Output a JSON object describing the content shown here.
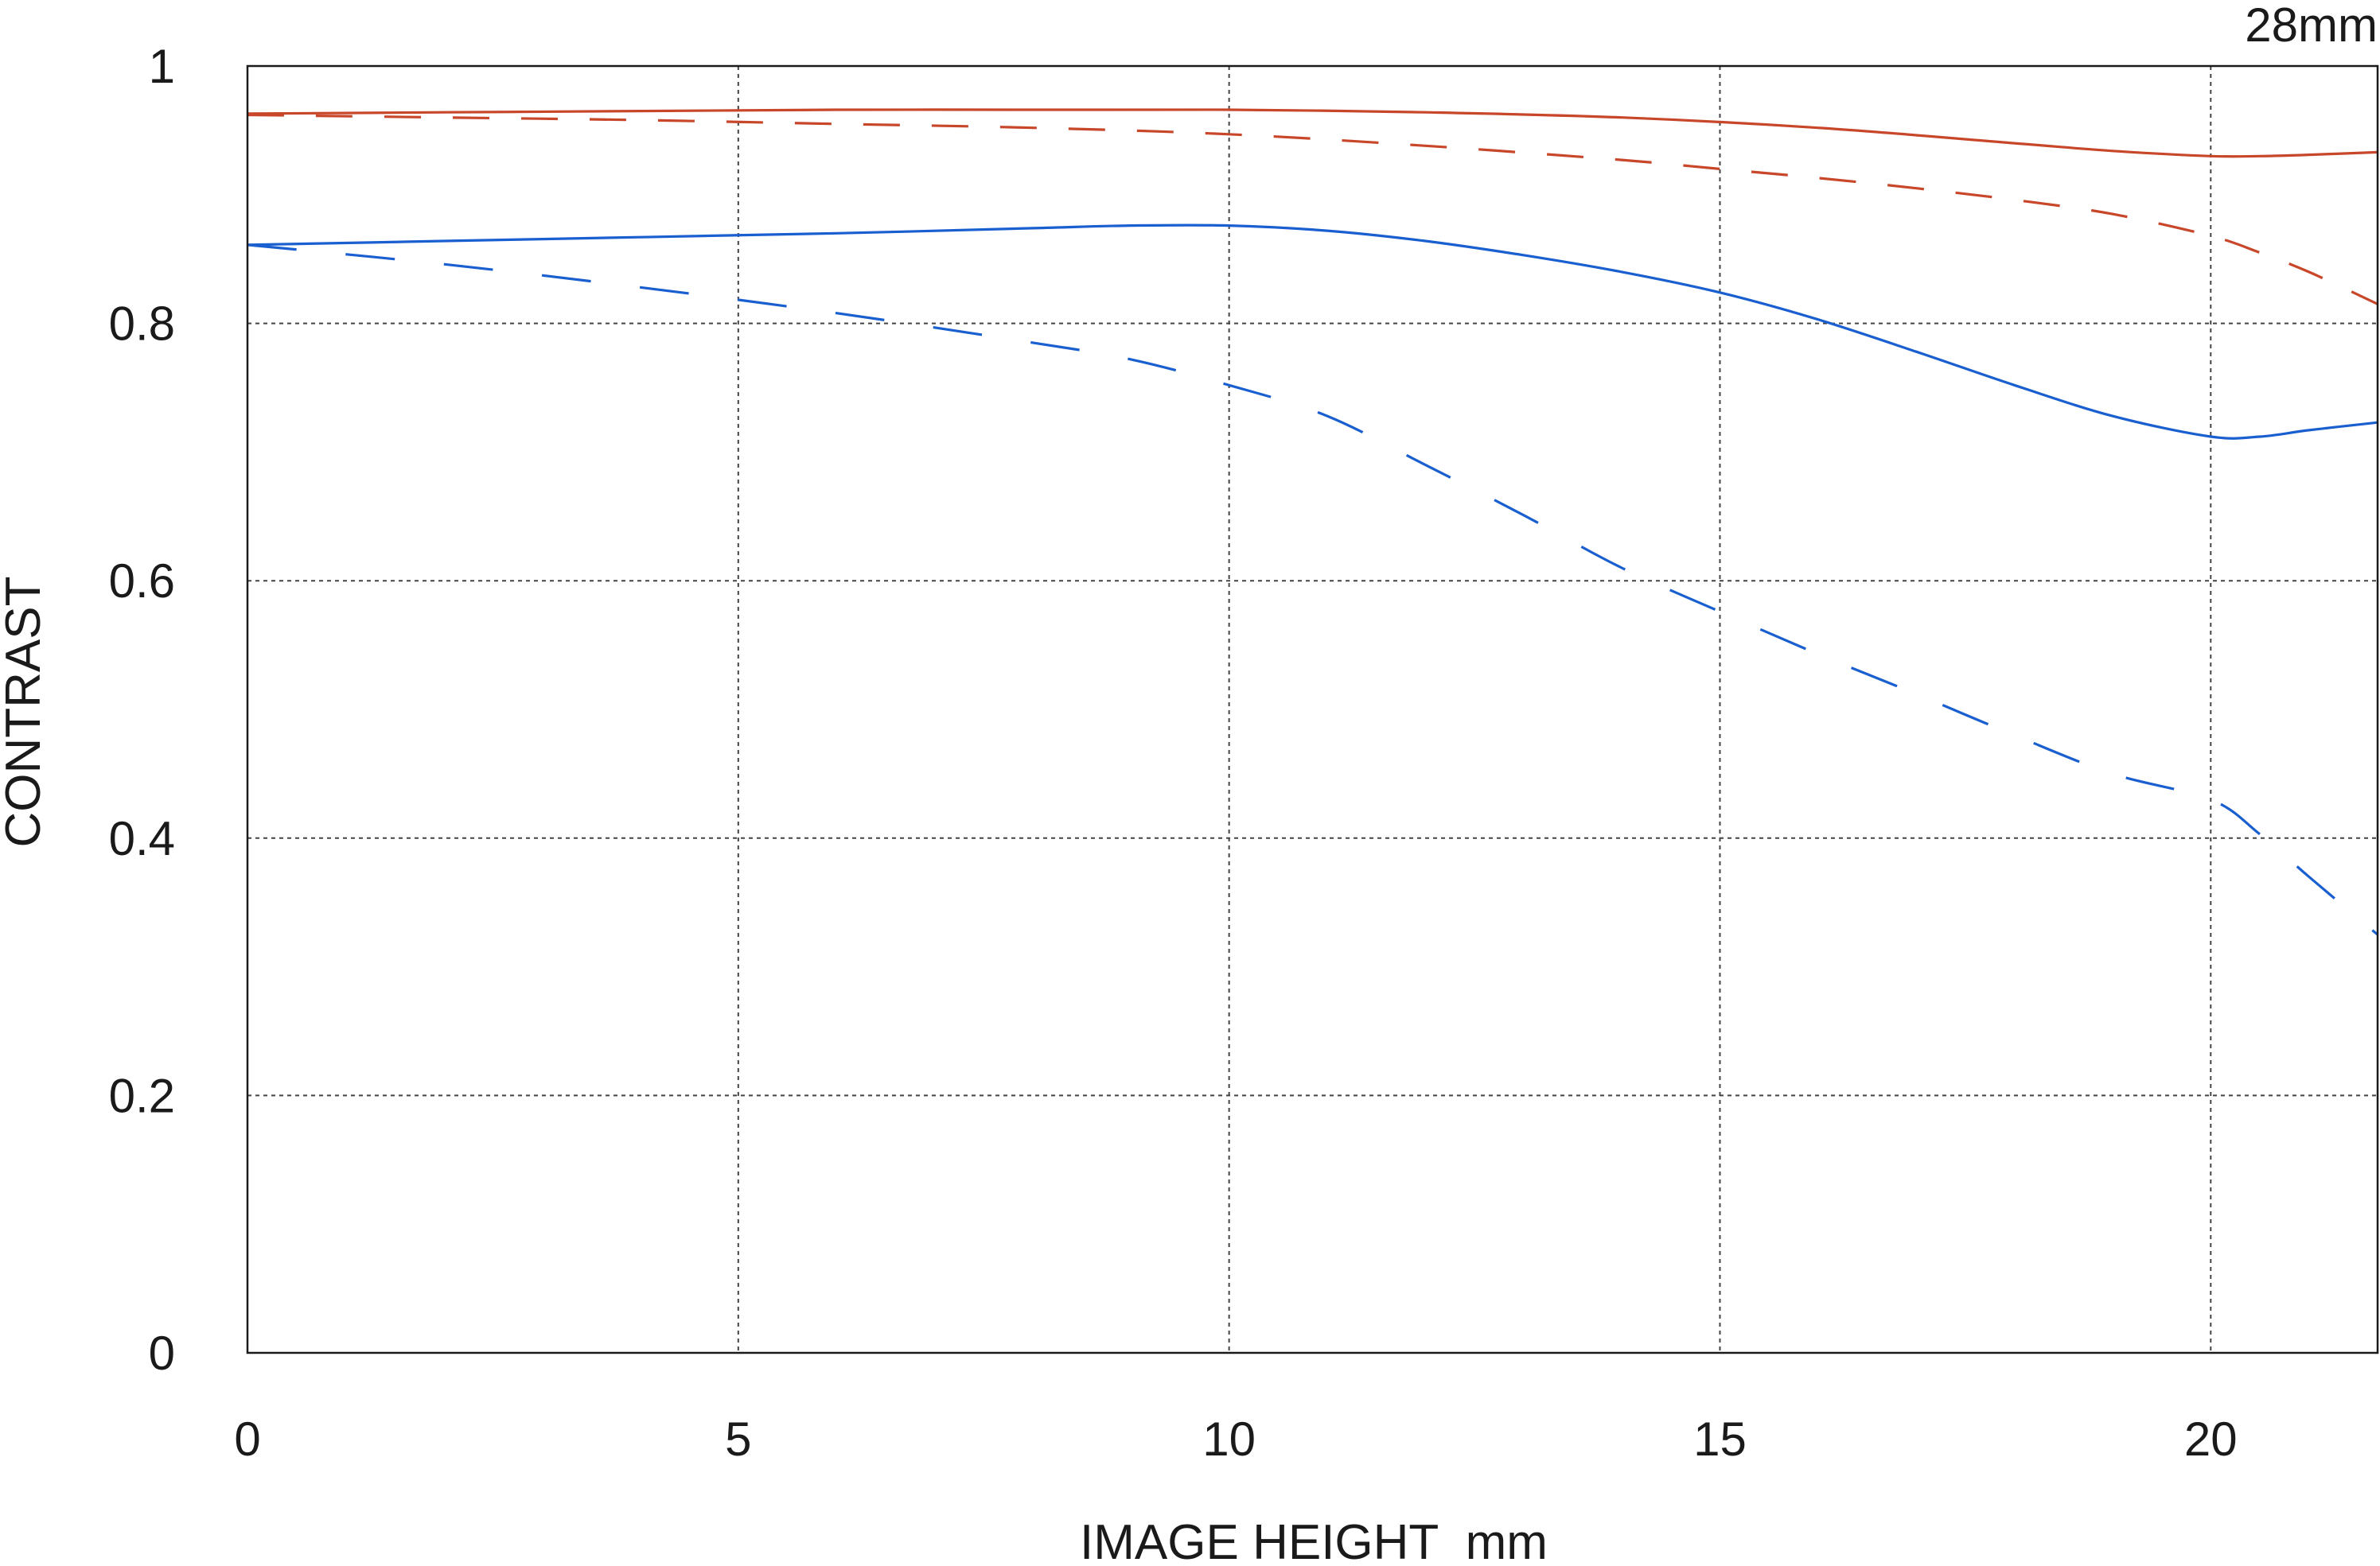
{
  "chart_data": {
    "type": "line",
    "title": "28mm",
    "xlabel": "IMAGE HEIGHT  mm",
    "ylabel": "CONTRAST",
    "xlim": [
      0,
      21.7
    ],
    "ylim": [
      0,
      1
    ],
    "x_ticks": [
      0,
      5,
      10,
      15,
      20
    ],
    "x_tick_labels": [
      "0",
      "5",
      "10",
      "15",
      "20"
    ],
    "y_ticks": [
      0,
      0.2,
      0.4,
      0.6,
      0.8,
      1
    ],
    "y_tick_labels": [
      "0",
      "0.2",
      "0.4",
      "0.6",
      "0.8",
      "1"
    ],
    "grid": true,
    "grid_style": "dotted",
    "legend": "none",
    "series": [
      {
        "color": "#c8472a",
        "line_style": "solid",
        "x": [
          0,
          2,
          4,
          6,
          8,
          10,
          12,
          14,
          16,
          18,
          19,
          20,
          20.5,
          21,
          21.7
        ],
        "y": [
          0.963,
          0.964,
          0.965,
          0.966,
          0.966,
          0.966,
          0.964,
          0.96,
          0.952,
          0.94,
          0.934,
          0.93,
          0.93,
          0.931,
          0.933
        ]
      },
      {
        "color": "#c8472a",
        "line_style": "dashed",
        "x": [
          0,
          2,
          4,
          6,
          8,
          10,
          12,
          14,
          15,
          16,
          17,
          18,
          19,
          20,
          20.5,
          21,
          21.7
        ],
        "y": [
          0.962,
          0.96,
          0.958,
          0.955,
          0.952,
          0.947,
          0.938,
          0.927,
          0.92,
          0.913,
          0.905,
          0.896,
          0.885,
          0.868,
          0.855,
          0.84,
          0.815
        ]
      },
      {
        "color": "#1a5fcf",
        "line_style": "solid",
        "x": [
          0,
          2,
          4,
          6,
          8,
          9,
          10,
          11,
          12,
          13,
          14,
          15,
          16,
          17,
          18,
          19,
          20,
          20.5,
          21,
          21.7
        ],
        "y": [
          0.861,
          0.864,
          0.867,
          0.87,
          0.874,
          0.876,
          0.876,
          0.872,
          0.864,
          0.853,
          0.84,
          0.824,
          0.803,
          0.778,
          0.752,
          0.728,
          0.712,
          0.712,
          0.717,
          0.723
        ]
      },
      {
        "color": "#1a5fcf",
        "line_style": "dashed",
        "x": [
          0,
          2,
          4,
          6,
          8,
          9,
          10,
          11,
          12,
          13,
          14,
          15,
          16,
          17,
          18,
          19,
          20,
          20.5,
          21,
          21.7
        ],
        "y": [
          0.861,
          0.846,
          0.828,
          0.808,
          0.785,
          0.772,
          0.752,
          0.728,
          0.69,
          0.651,
          0.61,
          0.576,
          0.543,
          0.512,
          0.48,
          0.45,
          0.43,
          0.403,
          0.37,
          0.325
        ]
      }
    ]
  }
}
